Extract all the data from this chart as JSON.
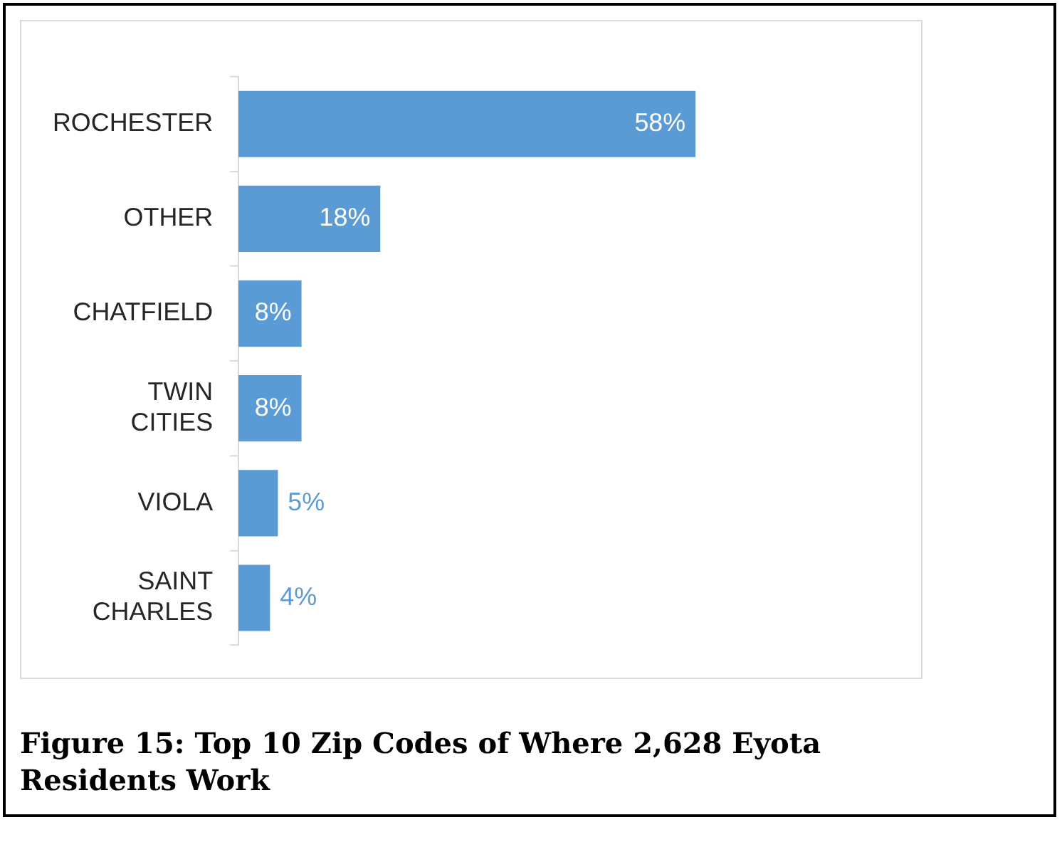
{
  "chart_data": {
    "type": "bar",
    "orientation": "horizontal",
    "title": "Figure 15: Top 10 Zip Codes of Where 2,628 Eyota Residents Work",
    "categories": [
      "ROCHESTER",
      "OTHER",
      "CHATFIELD",
      "TWIN CITIES",
      "VIOLA",
      "SAINT CHARLES"
    ],
    "values": [
      58,
      18,
      8,
      8,
      5,
      4
    ],
    "color": "#5b9bd5",
    "value_labels": [
      "58%",
      "18%",
      "8%",
      "8%",
      "5%",
      "4%"
    ]
  }
}
